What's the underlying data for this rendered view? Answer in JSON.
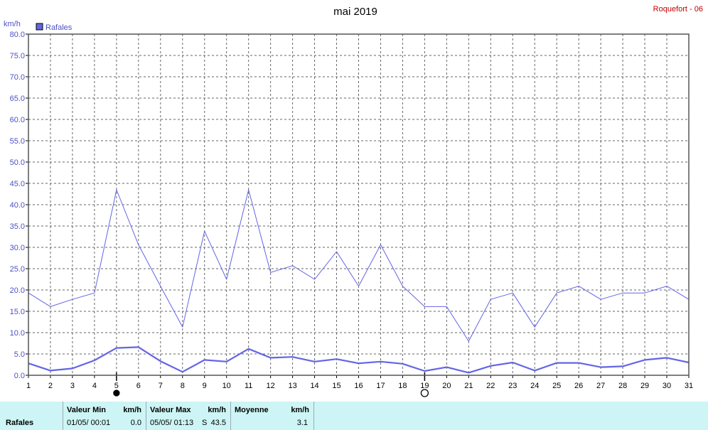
{
  "header": {
    "title": "mai 2019",
    "station": "Roquefort - 06",
    "unit": "km/h"
  },
  "colors": {
    "series": "#6464e6",
    "axis": "#000000",
    "grid": "#555555",
    "footer_bg": "#cdf5f5",
    "station": "#c00000"
  },
  "chart_data": {
    "type": "line",
    "ylabel": "km/h",
    "ylim": [
      0,
      80
    ],
    "xlim": [
      1,
      31
    ],
    "yticks": [
      "0.0",
      "5.0",
      "10.0",
      "15.0",
      "20.0",
      "25.0",
      "30.0",
      "35.0",
      "40.0",
      "45.0",
      "50.0",
      "55.0",
      "60.0",
      "65.0",
      "70.0",
      "75.0",
      "80.0"
    ],
    "x": [
      1,
      2,
      3,
      4,
      5,
      6,
      7,
      8,
      9,
      10,
      11,
      12,
      13,
      14,
      15,
      16,
      17,
      18,
      19,
      20,
      21,
      22,
      23,
      24,
      25,
      26,
      27,
      28,
      29,
      30,
      31
    ],
    "legend": {
      "label": "Rafales",
      "placement": "top-left"
    },
    "grid": true,
    "markers": [
      {
        "day": 5,
        "symbol": "filled-circle"
      },
      {
        "day": 19,
        "symbol": "open-circle"
      }
    ],
    "series": [
      {
        "name": "Rafales",
        "style": "thin",
        "values": [
          19.3,
          16.1,
          17.8,
          19.3,
          43.5,
          30.6,
          20.9,
          11.3,
          33.8,
          22.5,
          43.5,
          24.1,
          25.7,
          22.5,
          29.0,
          20.9,
          30.6,
          20.9,
          16.1,
          16.1,
          8.0,
          17.8,
          19.3,
          11.3,
          19.3,
          20.9,
          17.8,
          19.3,
          19.3,
          20.9,
          17.8
        ]
      },
      {
        "name": "",
        "style": "thick",
        "values": [
          2.8,
          1.1,
          1.6,
          3.5,
          6.4,
          6.6,
          3.3,
          0.8,
          3.6,
          3.2,
          6.2,
          4.1,
          4.3,
          3.2,
          3.8,
          2.8,
          3.2,
          2.7,
          1.0,
          1.9,
          0.6,
          2.2,
          3.0,
          1.1,
          2.9,
          2.9,
          1.9,
          2.1,
          3.6,
          4.1,
          3.0
        ]
      }
    ]
  },
  "footer": {
    "row_label": "Rafales",
    "min_label": "Valeur Min",
    "min_unit": "km/h",
    "min_date": "01/05/  00:01",
    "min_value": "0.0",
    "max_label": "Valeur Max",
    "max_unit": "km/h",
    "max_date": "05/05/  01:13",
    "max_dir": "S",
    "max_value": "43.5",
    "avg_label": "Moyenne",
    "avg_unit": "km/h",
    "avg_value": "3.1"
  }
}
